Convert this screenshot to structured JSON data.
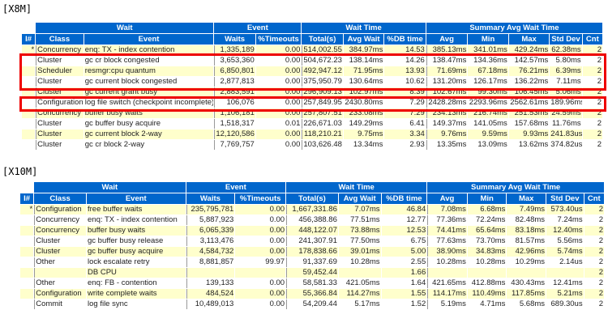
{
  "sections": [
    {
      "label": "[X8M]",
      "group_headers": [
        "Wait",
        "Event",
        "Wait Time",
        "Summary Avg Wait Time"
      ],
      "columns": [
        "I#",
        "Class",
        "Event",
        "Waits",
        "%Timeouts",
        "Total(s)",
        "Avg Wait",
        "%DB time",
        "Avg",
        "Min",
        "Max",
        "Std Dev",
        "Cnt"
      ],
      "rows": [
        [
          "*",
          "Concurrency",
          "enq: TX - index contention",
          "1,335,189",
          "0.00",
          "514,002.55",
          "384.97ms",
          "14.53",
          "385.13ms",
          "341.01ms",
          "429.24ms",
          "62.38ms",
          "2"
        ],
        [
          "",
          "Cluster",
          "gc cr block congested",
          "3,653,360",
          "0.00",
          "504,672.23",
          "138.14ms",
          "14.26",
          "138.47ms",
          "134.36ms",
          "142.57ms",
          "5.80ms",
          "2"
        ],
        [
          "",
          "Scheduler",
          "resmgr:cpu quantum",
          "6,850,801",
          "0.00",
          "492,947.12",
          "71.95ms",
          "13.93",
          "71.69ms",
          "67.18ms",
          "76.21ms",
          "6.39ms",
          "2"
        ],
        [
          "",
          "Cluster",
          "gc current block congested",
          "2,877,813",
          "0.00",
          "375,950.79",
          "130.64ms",
          "10.62",
          "131.20ms",
          "126.17ms",
          "136.22ms",
          "7.11ms",
          "2"
        ],
        [
          "",
          "Cluster",
          "gc current grant busy",
          "2,883,591",
          "0.00",
          "296,909.13",
          "102.97ms",
          "8.39",
          "102.67ms",
          "99.30ms",
          "106.45ms",
          "5.06ms",
          "2"
        ],
        [
          "",
          "Configuration",
          "log file switch (checkpoint incomplete)",
          "106,076",
          "0.00",
          "257,849.95",
          "2430.80ms",
          "7.29",
          "2428.28ms",
          "2293.96ms",
          "2562.61ms",
          "189.96ms",
          "2"
        ],
        [
          "",
          "Concurrency",
          "buffer busy waits",
          "1,106,181",
          "0.00",
          "257,807.51",
          "233.08ms",
          "7.29",
          "234.13ms",
          "216.74ms",
          "251.53ms",
          "24.59ms",
          "2"
        ],
        [
          "",
          "Cluster",
          "gc buffer busy acquire",
          "1,518,317",
          "0.01",
          "226,671.03",
          "149.29ms",
          "6.41",
          "149.37ms",
          "141.05ms",
          "157.68ms",
          "11.76ms",
          "2"
        ],
        [
          "",
          "Cluster",
          "gc current block 2-way",
          "12,120,586",
          "0.00",
          "118,210.21",
          "9.75ms",
          "3.34",
          "9.76ms",
          "9.59ms",
          "9.93ms",
          "241.83us",
          "2"
        ],
        [
          "",
          "Cluster",
          "gc cr block 2-way",
          "7,769,757",
          "0.00",
          "103,626.48",
          "13.34ms",
          "2.93",
          "13.35ms",
          "13.09ms",
          "13.62ms",
          "374.82us",
          "2"
        ]
      ]
    },
    {
      "label": "[X10M]",
      "group_headers": [
        "Wait",
        "Event",
        "Wait Time",
        "Summary Avg Wait Time"
      ],
      "columns": [
        "I#",
        "Class",
        "Event",
        "Waits",
        "%Timeouts",
        "Total(s)",
        "Avg Wait",
        "%DB time",
        "Avg",
        "Min",
        "Max",
        "Std Dev",
        "Cnt"
      ],
      "rows": [
        [
          "*",
          "Configuration",
          "free buffer waits",
          "235,795,781",
          "0.00",
          "1,667,331.86",
          "7.07ms",
          "46.84",
          "7.08ms",
          "6.68ms",
          "7.49ms",
          "573.40us",
          "2"
        ],
        [
          "",
          "Concurrency",
          "enq: TX - index contention",
          "5,887,923",
          "0.00",
          "456,388.86",
          "77.51ms",
          "12.77",
          "77.36ms",
          "72.24ms",
          "82.48ms",
          "7.24ms",
          "2"
        ],
        [
          "",
          "Concurrency",
          "buffer busy waits",
          "6,065,339",
          "0.00",
          "448,122.07",
          "73.88ms",
          "12.53",
          "74.41ms",
          "65.64ms",
          "83.18ms",
          "12.40ms",
          "2"
        ],
        [
          "",
          "Cluster",
          "gc buffer busy release",
          "3,113,476",
          "0.00",
          "241,307.91",
          "77.50ms",
          "6.75",
          "77.63ms",
          "73.70ms",
          "81.57ms",
          "5.56ms",
          "2"
        ],
        [
          "",
          "Cluster",
          "gc buffer busy acquire",
          "4,584,732",
          "0.00",
          "178,838.66",
          "39.01ms",
          "5.00",
          "38.90ms",
          "34.83ms",
          "42.96ms",
          "5.74ms",
          "2"
        ],
        [
          "",
          "Other",
          "lock escalate retry",
          "8,881,857",
          "99.97",
          "91,337.69",
          "10.28ms",
          "2.55",
          "10.28ms",
          "10.28ms",
          "10.29ms",
          "2.14us",
          "2"
        ],
        [
          "",
          "",
          "DB CPU",
          "",
          "",
          "59,452.44",
          "",
          "1.66",
          "",
          "",
          "",
          "",
          "2"
        ],
        [
          "",
          "Other",
          "enq: FB - contention",
          "139,133",
          "0.00",
          "58,581.33",
          "421.05ms",
          "1.64",
          "421.65ms",
          "412.88ms",
          "430.43ms",
          "12.41ms",
          "2"
        ],
        [
          "",
          "Configuration",
          "write complete waits",
          "484,524",
          "0.00",
          "55,366.84",
          "114.27ms",
          "1.55",
          "114.17ms",
          "110.49ms",
          "117.85ms",
          "5.21ms",
          "2"
        ],
        [
          "",
          "Commit",
          "log file sync",
          "10,489,013",
          "0.00",
          "54,209.44",
          "5.17ms",
          "1.52",
          "5.19ms",
          "4.71ms",
          "5.68ms",
          "689.30us",
          "2"
        ]
      ]
    }
  ],
  "colors": {
    "header": "#0066cc",
    "row_alt": "#ffffcc",
    "highlight": "#ee0000"
  }
}
